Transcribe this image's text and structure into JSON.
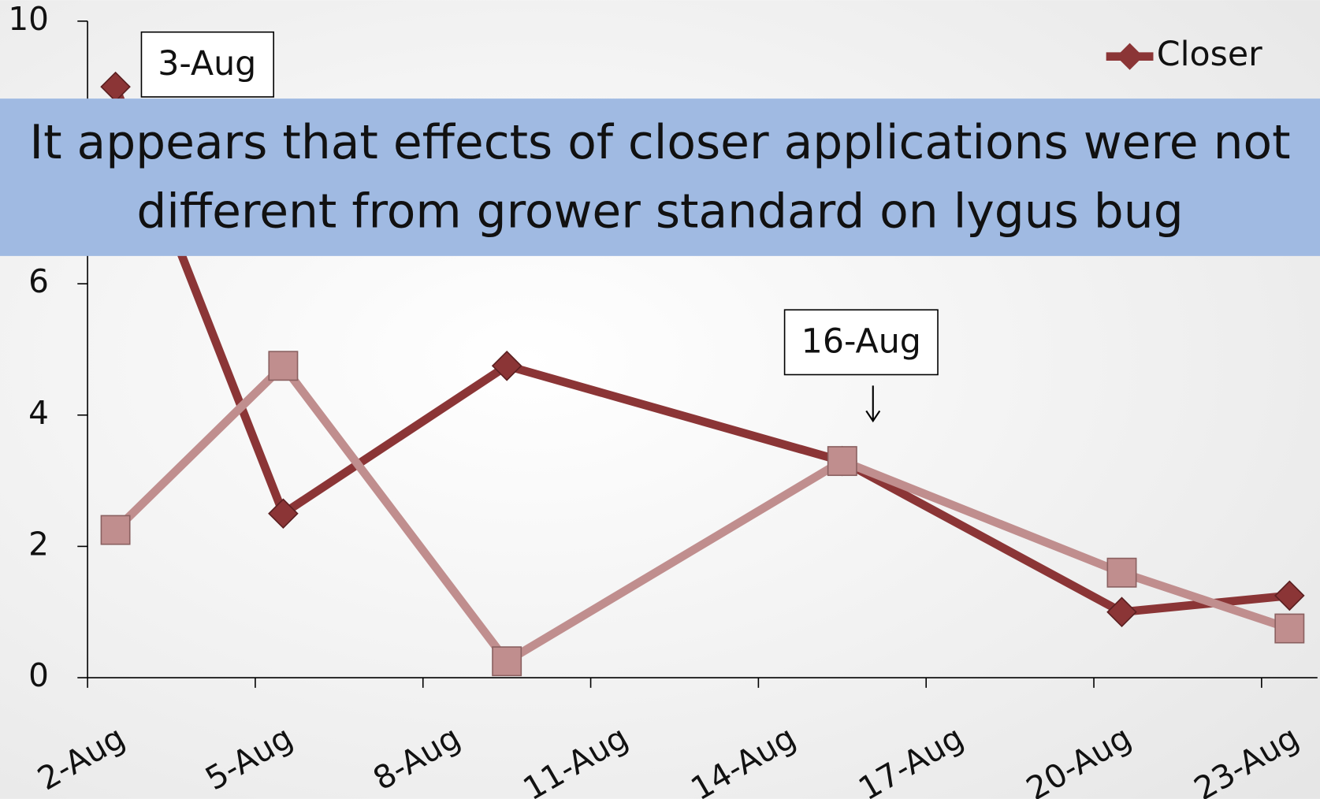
{
  "chart_data": {
    "type": "line",
    "banner": "It appears that effects of closer applications were not different from grower standard on lygus bug",
    "annotations": [
      "3-Aug",
      "16-Aug"
    ],
    "x": [
      2.5,
      5.5,
      9.5,
      15.5,
      20.5,
      23.5
    ],
    "series": [
      {
        "name": "Closer",
        "color": "#8b3536",
        "marker": "diamond",
        "values": [
          9.0,
          2.5,
          4.75,
          3.3,
          1.0,
          1.25
        ]
      },
      {
        "color": "#c08e8e",
        "marker": "square",
        "values": [
          2.25,
          4.75,
          0.25,
          3.3,
          1.6,
          0.75
        ]
      }
    ],
    "xlim": [
      2,
      24
    ],
    "xticks": [
      {
        "value": 2,
        "label": "2-Aug"
      },
      {
        "value": 5,
        "label": "5-Aug"
      },
      {
        "value": 8,
        "label": "8-Aug"
      },
      {
        "value": 11,
        "label": "11-Aug"
      },
      {
        "value": 14,
        "label": "14-Aug"
      },
      {
        "value": 17,
        "label": "17-Aug"
      },
      {
        "value": 20,
        "label": "20-Aug"
      },
      {
        "value": 23,
        "label": "23-Aug"
      }
    ],
    "ylim": [
      0,
      10
    ],
    "yticks": [
      0,
      2,
      4,
      6,
      8,
      10
    ],
    "legend": "top-right"
  }
}
